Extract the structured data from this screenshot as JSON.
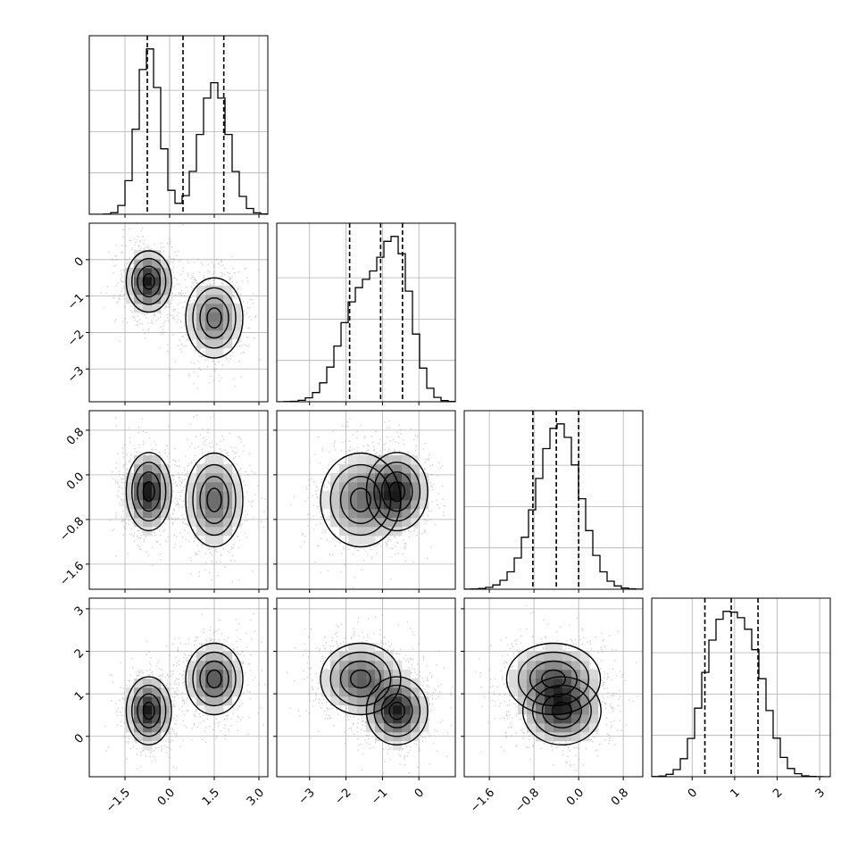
{
  "chart_data": {
    "type": "corner",
    "description": "Corner plot of 4 parameters: 1D marginal histograms on the diagonal with dashed quantile lines, 2D density histograms with contours and scatter points below the diagonal.",
    "grid": true,
    "parameters": [
      {
        "axis_range": [
          -2.7,
          3.3
        ],
        "ticks": [
          -1.5,
          0.0,
          1.5,
          3.0
        ],
        "tick_labels": [
          "−1.5",
          "0.0",
          "1.5",
          "3.0"
        ],
        "quantiles": [
          -0.75,
          0.45,
          1.82
        ],
        "mixture": [
          {
            "w": 0.5,
            "mean": -0.7,
            "sd": 0.38
          },
          {
            "w": 0.5,
            "mean": 1.5,
            "sd": 0.48
          }
        ]
      },
      {
        "axis_range": [
          -3.9,
          1.0
        ],
        "ticks": [
          -3,
          -2,
          -1,
          0
        ],
        "tick_labels": [
          "−3",
          "−2",
          "−1",
          "0"
        ],
        "quantiles": [
          -1.9,
          -1.05,
          -0.45
        ],
        "mixture": [
          {
            "w": 0.5,
            "mean": -0.6,
            "sd": 0.42
          },
          {
            "w": 0.5,
            "mean": -1.6,
            "sd": 0.55
          }
        ]
      },
      {
        "axis_range": [
          -2.05,
          1.15
        ],
        "ticks": [
          -1.6,
          -0.8,
          0.0,
          0.8
        ],
        "tick_labels": [
          "−1.6",
          "−0.8",
          "0.0",
          "0.8"
        ],
        "quantiles": [
          -0.82,
          -0.4,
          0.0
        ],
        "mixture": [
          {
            "w": 0.5,
            "mean": -0.3,
            "sd": 0.35
          },
          {
            "w": 0.5,
            "mean": -0.45,
            "sd": 0.42
          }
        ]
      },
      {
        "axis_range": [
          -0.95,
          3.25
        ],
        "ticks": [
          0,
          1,
          2,
          3
        ],
        "tick_labels": [
          "0",
          "1",
          "2",
          "3"
        ],
        "quantiles": [
          0.3,
          0.92,
          1.55
        ],
        "mixture": [
          {
            "w": 0.5,
            "mean": 0.6,
            "sd": 0.4
          },
          {
            "w": 0.5,
            "mean": 1.35,
            "sd": 0.42
          }
        ]
      }
    ],
    "components": [
      {
        "weight": 0.5,
        "mean": [
          -0.7,
          -0.6,
          -0.3,
          0.6
        ],
        "sd": [
          0.38,
          0.42,
          0.35,
          0.4
        ]
      },
      {
        "weight": 0.5,
        "mean": [
          1.5,
          -1.6,
          -0.45,
          1.35
        ],
        "sd": [
          0.48,
          0.55,
          0.42,
          0.42
        ]
      }
    ]
  }
}
